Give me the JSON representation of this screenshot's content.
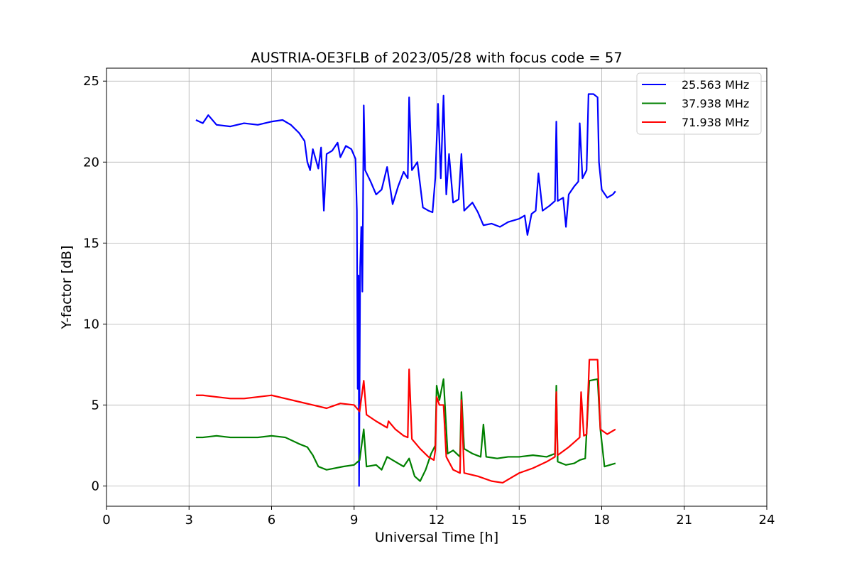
{
  "chart_data": {
    "type": "line",
    "title": "AUSTRIA-OE3FLB of 2023/05/28 with focus code = 57",
    "xlabel": "Universal Time [h]",
    "ylabel": "Y-factor [dB]",
    "xlim": [
      0,
      24
    ],
    "ylim": [
      -1.25,
      25.8
    ],
    "xticks": [
      0,
      3,
      6,
      9,
      12,
      15,
      18,
      21,
      24
    ],
    "yticks": [
      0,
      5,
      10,
      15,
      20,
      25
    ],
    "grid": true,
    "legend_position": "top-right",
    "series": [
      {
        "name": "25.563 MHz",
        "color": "#0000ff",
        "points": [
          [
            3.25,
            22.6
          ],
          [
            3.5,
            22.4
          ],
          [
            3.7,
            22.9
          ],
          [
            4.0,
            22.3
          ],
          [
            4.5,
            22.2
          ],
          [
            5.0,
            22.4
          ],
          [
            5.5,
            22.3
          ],
          [
            6.0,
            22.5
          ],
          [
            6.4,
            22.6
          ],
          [
            6.7,
            22.3
          ],
          [
            7.0,
            21.8
          ],
          [
            7.2,
            21.3
          ],
          [
            7.3,
            20.0
          ],
          [
            7.4,
            19.5
          ],
          [
            7.5,
            20.8
          ],
          [
            7.7,
            19.6
          ],
          [
            7.8,
            20.9
          ],
          [
            7.9,
            17.0
          ],
          [
            8.0,
            20.5
          ],
          [
            8.2,
            20.7
          ],
          [
            8.4,
            21.2
          ],
          [
            8.5,
            20.3
          ],
          [
            8.7,
            21.0
          ],
          [
            8.9,
            20.8
          ],
          [
            9.05,
            20.2
          ],
          [
            9.1,
            17.0
          ],
          [
            9.13,
            6.0
          ],
          [
            9.16,
            13.0
          ],
          [
            9.18,
            0.0
          ],
          [
            9.22,
            13.5
          ],
          [
            9.26,
            16.0
          ],
          [
            9.3,
            12.0
          ],
          [
            9.35,
            23.5
          ],
          [
            9.4,
            19.5
          ],
          [
            9.6,
            18.8
          ],
          [
            9.8,
            18.0
          ],
          [
            10.0,
            18.3
          ],
          [
            10.2,
            19.7
          ],
          [
            10.4,
            17.4
          ],
          [
            10.6,
            18.5
          ],
          [
            10.8,
            19.4
          ],
          [
            10.95,
            19.0
          ],
          [
            11.0,
            24.0
          ],
          [
            11.1,
            19.5
          ],
          [
            11.3,
            20.0
          ],
          [
            11.5,
            17.2
          ],
          [
            11.7,
            17.0
          ],
          [
            11.85,
            16.9
          ],
          [
            11.95,
            19.0
          ],
          [
            12.05,
            23.6
          ],
          [
            12.15,
            19.0
          ],
          [
            12.25,
            24.1
          ],
          [
            12.35,
            18.0
          ],
          [
            12.45,
            20.5
          ],
          [
            12.6,
            17.5
          ],
          [
            12.8,
            17.7
          ],
          [
            12.9,
            20.5
          ],
          [
            13.0,
            17.0
          ],
          [
            13.3,
            17.5
          ],
          [
            13.5,
            16.9
          ],
          [
            13.7,
            16.1
          ],
          [
            14.0,
            16.2
          ],
          [
            14.3,
            16.0
          ],
          [
            14.6,
            16.3
          ],
          [
            15.0,
            16.5
          ],
          [
            15.2,
            16.7
          ],
          [
            15.3,
            15.5
          ],
          [
            15.45,
            16.8
          ],
          [
            15.6,
            17.0
          ],
          [
            15.7,
            19.3
          ],
          [
            15.85,
            17.0
          ],
          [
            16.1,
            17.3
          ],
          [
            16.3,
            17.6
          ],
          [
            16.35,
            22.5
          ],
          [
            16.4,
            17.6
          ],
          [
            16.6,
            17.8
          ],
          [
            16.7,
            16.0
          ],
          [
            16.8,
            18.0
          ],
          [
            17.0,
            18.5
          ],
          [
            17.15,
            18.8
          ],
          [
            17.2,
            22.4
          ],
          [
            17.3,
            19.0
          ],
          [
            17.45,
            19.5
          ],
          [
            17.52,
            24.2
          ],
          [
            17.7,
            24.2
          ],
          [
            17.85,
            24.0
          ],
          [
            17.9,
            20.0
          ],
          [
            18.0,
            18.3
          ],
          [
            18.2,
            17.8
          ],
          [
            18.4,
            18.0
          ],
          [
            18.5,
            18.2
          ]
        ]
      },
      {
        "name": "37.938 MHz",
        "color": "#008000",
        "points": [
          [
            3.25,
            3.0
          ],
          [
            3.5,
            3.0
          ],
          [
            4.0,
            3.1
          ],
          [
            4.5,
            3.0
          ],
          [
            5.0,
            3.0
          ],
          [
            5.5,
            3.0
          ],
          [
            6.0,
            3.1
          ],
          [
            6.5,
            3.0
          ],
          [
            7.0,
            2.6
          ],
          [
            7.3,
            2.4
          ],
          [
            7.5,
            1.9
          ],
          [
            7.7,
            1.2
          ],
          [
            8.0,
            1.0
          ],
          [
            8.3,
            1.1
          ],
          [
            8.6,
            1.2
          ],
          [
            9.0,
            1.3
          ],
          [
            9.2,
            1.6
          ],
          [
            9.35,
            3.5
          ],
          [
            9.45,
            1.2
          ],
          [
            9.8,
            1.3
          ],
          [
            10.0,
            1.0
          ],
          [
            10.2,
            1.8
          ],
          [
            10.5,
            1.5
          ],
          [
            10.8,
            1.2
          ],
          [
            11.0,
            1.7
          ],
          [
            11.2,
            0.6
          ],
          [
            11.4,
            0.3
          ],
          [
            11.6,
            1.0
          ],
          [
            11.8,
            2.0
          ],
          [
            11.95,
            2.5
          ],
          [
            12.0,
            6.2
          ],
          [
            12.1,
            5.3
          ],
          [
            12.25,
            6.6
          ],
          [
            12.4,
            2.0
          ],
          [
            12.6,
            2.2
          ],
          [
            12.85,
            1.8
          ],
          [
            12.9,
            5.8
          ],
          [
            13.0,
            2.3
          ],
          [
            13.3,
            2.0
          ],
          [
            13.6,
            1.8
          ],
          [
            13.7,
            3.8
          ],
          [
            13.8,
            1.8
          ],
          [
            14.2,
            1.7
          ],
          [
            14.6,
            1.8
          ],
          [
            15.0,
            1.8
          ],
          [
            15.5,
            1.9
          ],
          [
            16.0,
            1.8
          ],
          [
            16.3,
            2.0
          ],
          [
            16.35,
            6.2
          ],
          [
            16.4,
            1.5
          ],
          [
            16.7,
            1.3
          ],
          [
            17.0,
            1.4
          ],
          [
            17.2,
            1.6
          ],
          [
            17.4,
            1.7
          ],
          [
            17.55,
            6.5
          ],
          [
            17.85,
            6.6
          ],
          [
            17.95,
            3.5
          ],
          [
            18.1,
            1.2
          ],
          [
            18.3,
            1.3
          ],
          [
            18.5,
            1.4
          ]
        ]
      },
      {
        "name": "71.938 MHz",
        "color": "#ff0000",
        "points": [
          [
            3.25,
            5.6
          ],
          [
            3.5,
            5.6
          ],
          [
            4.0,
            5.5
          ],
          [
            4.5,
            5.4
          ],
          [
            5.0,
            5.4
          ],
          [
            5.5,
            5.5
          ],
          [
            6.0,
            5.6
          ],
          [
            6.5,
            5.4
          ],
          [
            7.0,
            5.2
          ],
          [
            7.5,
            5.0
          ],
          [
            8.0,
            4.8
          ],
          [
            8.5,
            5.1
          ],
          [
            9.0,
            5.0
          ],
          [
            9.2,
            4.6
          ],
          [
            9.35,
            6.5
          ],
          [
            9.45,
            4.4
          ],
          [
            9.8,
            4.0
          ],
          [
            10.2,
            3.6
          ],
          [
            10.25,
            4.0
          ],
          [
            10.5,
            3.5
          ],
          [
            10.8,
            3.1
          ],
          [
            10.95,
            3.0
          ],
          [
            11.0,
            7.2
          ],
          [
            11.1,
            2.9
          ],
          [
            11.4,
            2.3
          ],
          [
            11.7,
            1.8
          ],
          [
            11.9,
            1.6
          ],
          [
            11.95,
            2.2
          ],
          [
            12.0,
            5.5
          ],
          [
            12.1,
            5.0
          ],
          [
            12.25,
            5.0
          ],
          [
            12.35,
            1.8
          ],
          [
            12.6,
            1.0
          ],
          [
            12.85,
            0.8
          ],
          [
            12.9,
            5.3
          ],
          [
            13.0,
            0.8
          ],
          [
            13.5,
            0.6
          ],
          [
            14.0,
            0.3
          ],
          [
            14.4,
            0.2
          ],
          [
            14.7,
            0.5
          ],
          [
            15.0,
            0.8
          ],
          [
            15.5,
            1.1
          ],
          [
            16.0,
            1.5
          ],
          [
            16.3,
            1.8
          ],
          [
            16.35,
            5.8
          ],
          [
            16.4,
            1.9
          ],
          [
            16.8,
            2.4
          ],
          [
            17.0,
            2.7
          ],
          [
            17.2,
            3.0
          ],
          [
            17.25,
            5.8
          ],
          [
            17.35,
            3.1
          ],
          [
            17.45,
            3.2
          ],
          [
            17.55,
            7.8
          ],
          [
            17.85,
            7.8
          ],
          [
            17.95,
            3.5
          ],
          [
            18.2,
            3.2
          ],
          [
            18.5,
            3.5
          ]
        ]
      }
    ]
  }
}
